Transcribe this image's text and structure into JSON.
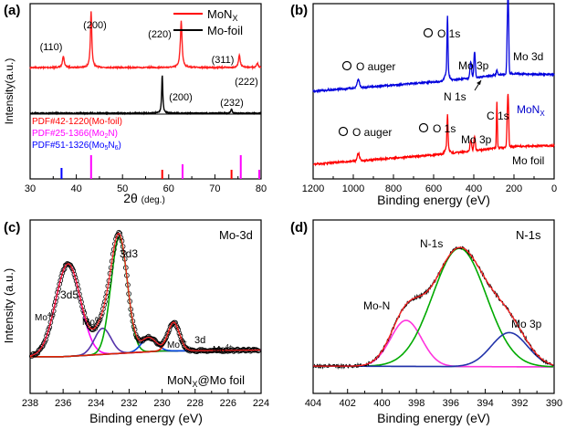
{
  "chart_data": [
    {
      "panel": "(a)",
      "type": "line",
      "xlabel": "2θ (deg.)",
      "ylabel": "Intensity(a.u.)",
      "xlim": [
        30,
        80
      ],
      "xticks": [
        "30",
        "40",
        "50",
        "60",
        "70",
        "80"
      ],
      "legend": {
        "placement": "top-right",
        "entries": [
          {
            "name": "MoN_X",
            "color": "#ff0000"
          },
          {
            "name": "Mo-foil",
            "color": "#000000"
          }
        ]
      },
      "series": [
        {
          "name": "MoN_X",
          "color": "#ff2020",
          "peaks": [
            {
              "x": 37.2,
              "h": 0.5,
              "w": 0.22
            },
            {
              "x": 43.2,
              "h": 2.4,
              "w": 0.18
            },
            {
              "x": 62.7,
              "h": 2.0,
              "w": 0.22
            },
            {
              "x": 75.3,
              "h": 0.55,
              "w": 0.22
            },
            {
              "x": 79.2,
              "h": 0.18,
              "w": 0.2
            }
          ]
        },
        {
          "name": "Mo-foil",
          "color": "#000000",
          "peaks": [
            {
              "x": 58.6,
              "h": 2.3,
              "w": 0.14
            },
            {
              "x": 73.6,
              "h": 0.25,
              "w": 0.16
            }
          ]
        }
      ],
      "peak_labels_red": [
        "(110)",
        "(200)",
        "(220)",
        "(311)",
        "(222)"
      ],
      "peak_labels_black": [
        "(200)",
        "(232)"
      ],
      "pdf_refs": [
        {
          "label": "PDF#42-1220(Mo-foil)",
          "color": "#ff0000",
          "lines": [
            {
              "x": 58.6,
              "h": 1.0
            },
            {
              "x": 73.6,
              "h": 1.0
            }
          ]
        },
        {
          "label": "PDF#25-1366(Mo2N)",
          "color": "#ff00ff",
          "lines": [
            {
              "x": 43.2,
              "h": 2.6
            },
            {
              "x": 63.0,
              "h": 1.6
            },
            {
              "x": 75.6,
              "h": 2.6
            },
            {
              "x": 79.6,
              "h": 1.0
            }
          ]
        },
        {
          "label": "PDF#51-1326(Mo5N6)",
          "color": "#0000ff",
          "lines": [
            {
              "x": 36.8,
              "h": 1.2
            }
          ]
        }
      ]
    },
    {
      "panel": "(b)",
      "type": "line",
      "xlabel": "Binding energy (eV)",
      "xlim": [
        1200,
        0
      ],
      "xticks": [
        "1200",
        "1000",
        "800",
        "600",
        "400",
        "200",
        "0"
      ],
      "series": [
        {
          "name": "MoN_X",
          "color": "#0000dd"
        },
        {
          "name": "Mo foil",
          "color": "#ff0000"
        }
      ],
      "annotations_blue": [
        "O auger",
        "O 1s",
        "Mo 3p",
        "Mo 3d",
        "N 1s",
        "MoN"
      ],
      "annotations_red": [
        "O auger",
        "O 1s",
        "C 1s",
        "Mo 3p",
        "Mo foil"
      ]
    },
    {
      "panel": "(c)",
      "type": "line",
      "title": "Mo-3d",
      "xlabel": "Binding energy (eV)",
      "ylabel": "Intensity (a.u.)",
      "xlim": [
        238,
        224
      ],
      "xticks": [
        "238",
        "236",
        "234",
        "232",
        "230",
        "228",
        "226",
        "224"
      ],
      "series": [
        {
          "name": "Mo4+ 3d5",
          "color": "#ff00ff",
          "center": 235.7,
          "height": 1.95,
          "width": 0.75
        },
        {
          "name": "Mo6+",
          "color": "#5533aa",
          "center": 233.6,
          "height": 0.55,
          "width": 0.5
        },
        {
          "name": "3d3",
          "color": "#00aa00",
          "center": 232.6,
          "height": 2.45,
          "width": 0.5
        },
        {
          "name": "Mo6+ 3d",
          "color": "#0044dd",
          "center": 230.8,
          "height": 0.3,
          "width": 0.45
        },
        {
          "name": "Mo4+",
          "color": "#dd2200",
          "center": 229.3,
          "height": 0.6,
          "width": 0.35
        }
      ],
      "labels": [
        "3d5",
        "3d3",
        "Mo4+",
        "Mo6+",
        "Mo6+",
        "3d",
        "Mo4+"
      ],
      "sample_label": "MoN_X@Mo foil"
    },
    {
      "panel": "(d)",
      "type": "line",
      "title": "N-1s",
      "xlabel": "Binding energy (eV)",
      "xlim": [
        404,
        390
      ],
      "xticks": [
        "404",
        "402",
        "400",
        "398",
        "396",
        "394",
        "392",
        "390"
      ],
      "series": [
        {
          "name": "Mo-N",
          "color": "#ff33dd",
          "center": 398.6,
          "height": 1.05,
          "width": 0.9
        },
        {
          "name": "N-1s",
          "color": "#00aa00",
          "center": 395.5,
          "height": 2.7,
          "width": 1.55
        },
        {
          "name": "Mo 3p",
          "color": "#2233aa",
          "center": 392.6,
          "height": 0.78,
          "width": 1.05
        }
      ],
      "labels": [
        "N-1s",
        "Mo-N",
        "Mo 3p"
      ]
    }
  ],
  "text": {
    "a_panel": "(a)",
    "b_panel": "(b)",
    "c_panel": "(c)",
    "d_panel": "(d)",
    "a_ylabel": "Intensity(a.u.)",
    "a_xlabel_main": "2θ",
    "a_xlabel_unit": "(deg.)",
    "a_leg_monx_main": "MoN",
    "a_leg_monx_sub": "X",
    "a_leg_mofoil": "Mo-foil",
    "a_pk_110": "(110)",
    "a_pk_200": "(200)",
    "a_pk_220": "(220)",
    "a_pk_311": "(311)",
    "a_pk_222": "(222)",
    "a_pk_200b": "(200)",
    "a_pk_232": "(232)",
    "a_pdf1": "PDF#42-1220(Mo-foil)",
    "a_pdf2_main": "PDF#25-1366(Mo",
    "a_pdf2_sub": "2",
    "a_pdf2_end": "N)",
    "a_pdf3_main": "PDF#51-1326(Mo",
    "a_pdf3_sub1": "5",
    "a_pdf3_mid": "N",
    "a_pdf3_sub2": "6",
    "a_pdf3_end": ")",
    "a_ticks": [
      "30",
      "40",
      "50",
      "60",
      "70",
      "80"
    ],
    "b_xlabel": "Binding energy (eV)",
    "b_ticks": [
      "1200",
      "1000",
      "800",
      "600",
      "400",
      "200",
      "0"
    ],
    "b_o1s_blue": "O 1s",
    "b_oauger_blue": "O auger",
    "b_mo3p_blue": "Mo 3p",
    "b_mo3d": "Mo 3d",
    "b_n1s": "N 1s",
    "b_monx_main": "MoN",
    "b_monx_sub": "X",
    "b_oauger_red": "O auger",
    "b_o1s_red": "O 1s",
    "b_c1s": "C 1s",
    "b_mo3p_red": "Mo 3p",
    "b_mofoil": "Mo foil",
    "c_title": "Mo-3d",
    "c_ylabel": "Intensity (a.u.)",
    "c_xlabel": "Binding energy (eV)",
    "c_ticks": [
      "238",
      "236",
      "234",
      "232",
      "230",
      "228",
      "226",
      "224"
    ],
    "c_3d5": "3d5",
    "c_3d3": "3d3",
    "c_3d": "3d",
    "c_mo": "Mo",
    "c_sup4": "4+",
    "c_sup6": "6+",
    "c_sample_main": "MoN",
    "c_sample_sub": "X",
    "c_sample_end": "@Mo foil",
    "d_title": "N-1s",
    "d_xlabel": "Binding energy (eV)",
    "d_ticks": [
      "404",
      "402",
      "400",
      "398",
      "396",
      "394",
      "392",
      "390"
    ],
    "d_n1s": "N-1s",
    "d_mon": "Mo-N",
    "d_mo3p": "Mo 3p"
  }
}
